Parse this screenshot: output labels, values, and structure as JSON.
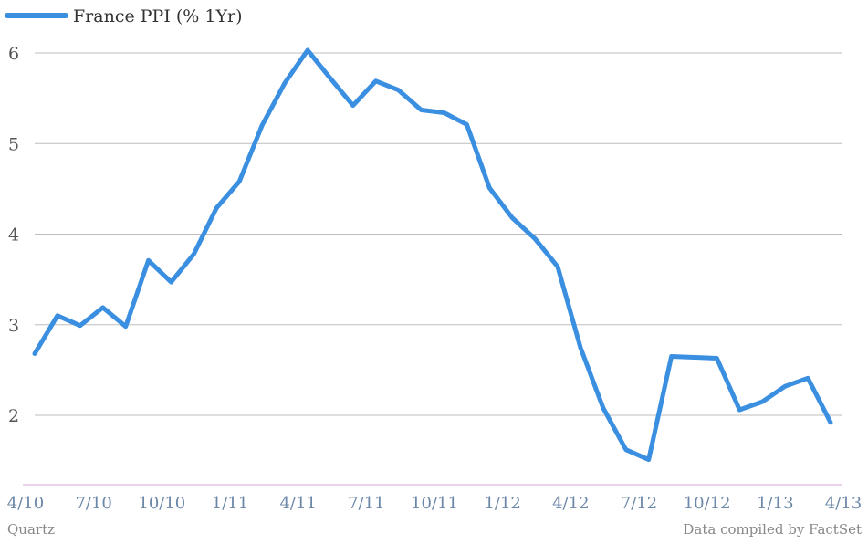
{
  "chart_data": {
    "type": "line",
    "title": "",
    "xlabel": "",
    "ylabel": "",
    "ylim": [
      1,
      6
    ],
    "y_ticks": [
      2,
      3,
      4,
      5,
      6
    ],
    "grid": true,
    "legend_placement": "top-left",
    "x_ticks": [
      {
        "label": "4/10",
        "index": 0
      },
      {
        "label": "7/10",
        "index": 3
      },
      {
        "label": "10/10",
        "index": 6
      },
      {
        "label": "1/11",
        "index": 9
      },
      {
        "label": "4/11",
        "index": 12
      },
      {
        "label": "7/11",
        "index": 15
      },
      {
        "label": "10/11",
        "index": 18
      },
      {
        "label": "1/12",
        "index": 21
      },
      {
        "label": "4/12",
        "index": 24
      },
      {
        "label": "7/12",
        "index": 27
      },
      {
        "label": "10/12",
        "index": 30
      },
      {
        "label": "1/13",
        "index": 33
      },
      {
        "label": "4/13",
        "index": 36
      }
    ],
    "series": [
      {
        "name": "France PPI (% 1Yr)",
        "color": "#3b8fe0",
        "values": [
          2.68,
          3.1,
          2.99,
          3.19,
          2.98,
          3.71,
          3.47,
          3.78,
          4.29,
          4.58,
          5.2,
          5.67,
          6.03,
          5.72,
          5.42,
          5.69,
          5.59,
          5.37,
          5.34,
          5.21,
          4.51,
          4.18,
          3.95,
          3.64,
          2.75,
          2.08,
          1.62,
          1.51,
          2.65,
          2.64,
          2.63,
          2.06,
          2.15,
          2.32,
          2.41,
          1.92
        ]
      }
    ]
  },
  "footer": {
    "source_left": "Quartz",
    "source_right": "Data compiled by FactSet"
  },
  "colors": {
    "line": "#3b8fe0",
    "grid": "#bdbdbd",
    "baseline": "#d9a3d9",
    "xtick": "#6b87a8"
  }
}
